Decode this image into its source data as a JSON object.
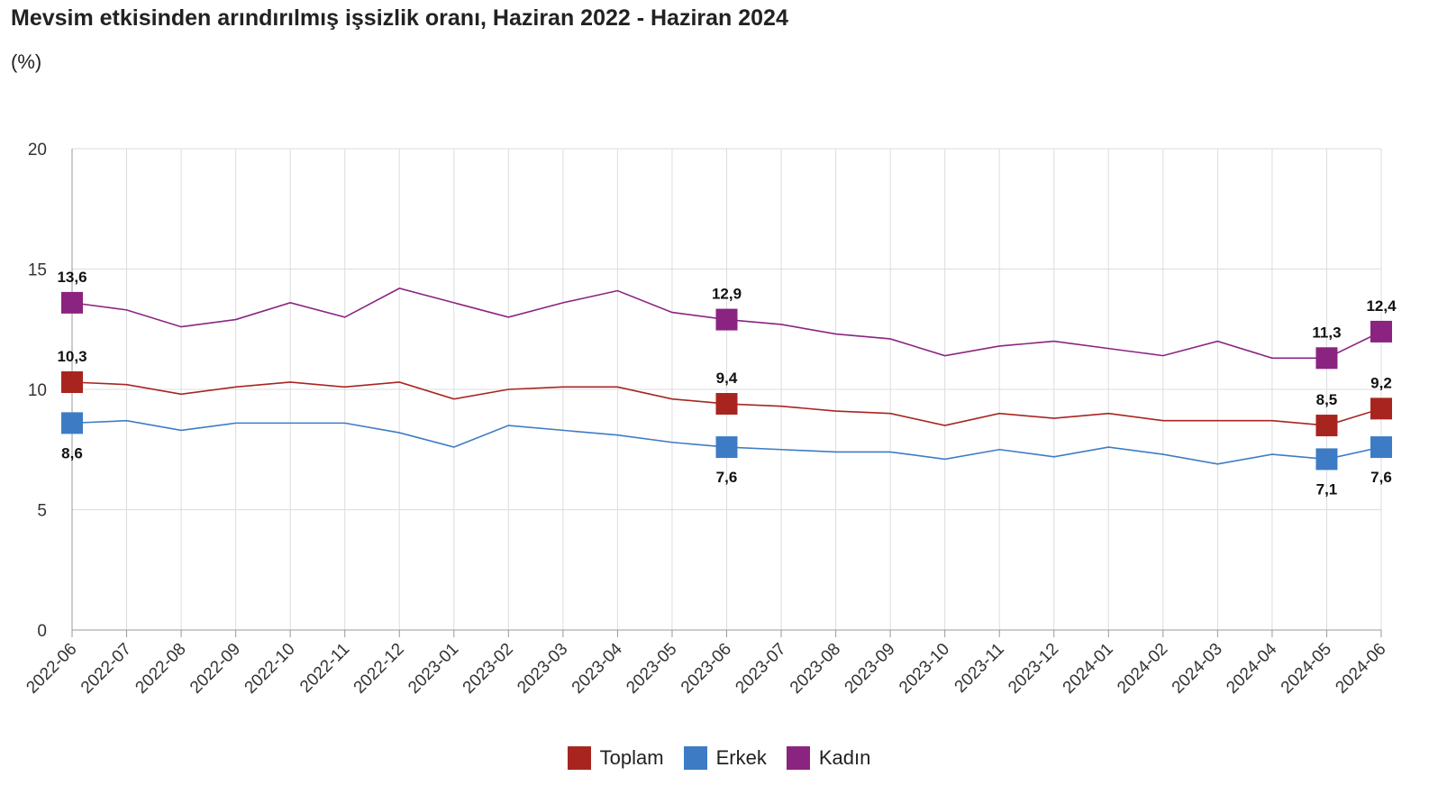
{
  "title": "Mevsim etkisinden arındırılmış işsizlik oranı, Haziran 2022 - Haziran 2024",
  "subtitle": "(%)",
  "chart_data": {
    "type": "line",
    "title": "Mevsim etkisinden arındırılmış işsizlik oranı, Haziran 2022 - Haziran 2024",
    "ylabel": "(%)",
    "xlabel": "",
    "ylim": [
      0,
      20
    ],
    "yticks": [
      0,
      5,
      10,
      15,
      20
    ],
    "grid": true,
    "legend_position": "bottom",
    "categories": [
      "2022-06",
      "2022-07",
      "2022-08",
      "2022-09",
      "2022-10",
      "2022-11",
      "2022-12",
      "2023-01",
      "2023-02",
      "2023-03",
      "2023-04",
      "2023-05",
      "2023-06",
      "2023-07",
      "2023-08",
      "2023-09",
      "2023-10",
      "2023-11",
      "2023-12",
      "2024-01",
      "2024-02",
      "2024-03",
      "2024-04",
      "2024-05",
      "2024-06"
    ],
    "series": [
      {
        "name": "Toplam",
        "color": "#a8251f",
        "values": [
          10.3,
          10.2,
          9.8,
          10.1,
          10.3,
          10.1,
          10.3,
          9.6,
          10.0,
          10.1,
          10.1,
          9.6,
          9.4,
          9.3,
          9.1,
          9.0,
          8.5,
          9.0,
          8.8,
          9.0,
          8.7,
          8.7,
          8.7,
          8.5,
          9.2
        ],
        "labeled_points": [
          {
            "index": 0,
            "text": "10,3",
            "position": "above"
          },
          {
            "index": 12,
            "text": "9,4",
            "position": "above"
          },
          {
            "index": 23,
            "text": "8,5",
            "position": "above"
          },
          {
            "index": 24,
            "text": "9,2",
            "position": "above"
          }
        ]
      },
      {
        "name": "Erkek",
        "color": "#3d7cc4",
        "values": [
          8.6,
          8.7,
          8.3,
          8.6,
          8.6,
          8.6,
          8.2,
          7.6,
          8.5,
          8.3,
          8.1,
          7.8,
          7.6,
          7.5,
          7.4,
          7.4,
          7.1,
          7.5,
          7.2,
          7.6,
          7.3,
          6.9,
          7.3,
          7.1,
          7.6
        ],
        "labeled_points": [
          {
            "index": 0,
            "text": "8,6",
            "position": "below"
          },
          {
            "index": 12,
            "text": "7,6",
            "position": "below"
          },
          {
            "index": 23,
            "text": "7,1",
            "position": "below"
          },
          {
            "index": 24,
            "text": "7,6",
            "position": "below"
          }
        ]
      },
      {
        "name": "Kadın",
        "color": "#8a2480",
        "values": [
          13.6,
          13.3,
          12.6,
          12.9,
          13.6,
          13.0,
          14.2,
          13.6,
          13.0,
          13.6,
          14.1,
          13.2,
          12.9,
          12.7,
          12.3,
          12.1,
          11.4,
          11.8,
          12.0,
          11.7,
          11.4,
          12.0,
          11.3,
          11.3,
          12.4
        ],
        "labeled_points": [
          {
            "index": 0,
            "text": "13,6",
            "position": "above"
          },
          {
            "index": 12,
            "text": "12,9",
            "position": "above"
          },
          {
            "index": 23,
            "text": "11,3",
            "position": "above"
          },
          {
            "index": 24,
            "text": "12,4",
            "position": "above"
          }
        ]
      }
    ]
  }
}
